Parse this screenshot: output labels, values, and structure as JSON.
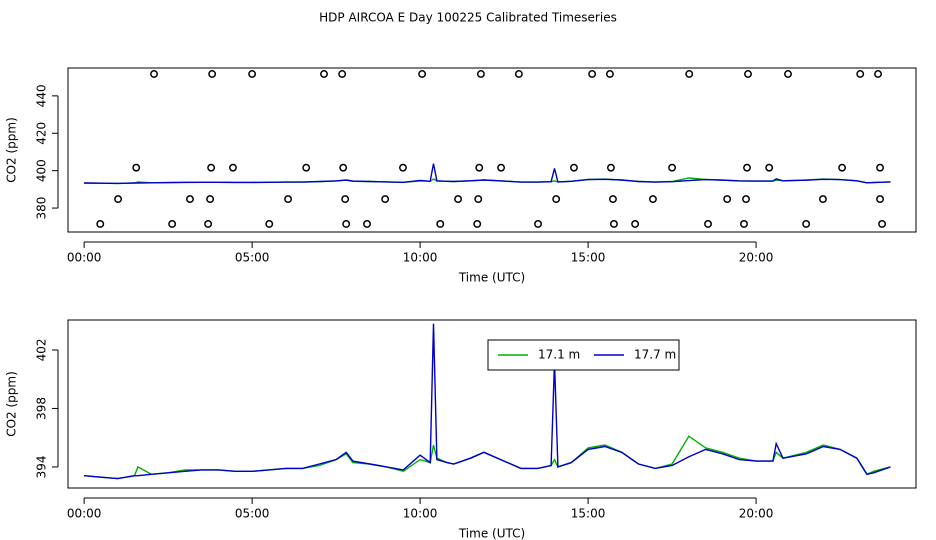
{
  "chart_data": [
    {
      "type": "line",
      "title": "HDP AIRCOA E  Day 100225  Calibrated Timeseries",
      "xlabel": "Time (UTC)",
      "ylabel": "CO2 (ppm)",
      "xlim": [
        -0.48,
        24.76
      ],
      "ylim": [
        367.2,
        454.9
      ],
      "xticks": [
        {
          "value": 0,
          "label": "00:00"
        },
        {
          "value": 5,
          "label": "05:00"
        },
        {
          "value": 10,
          "label": "10:00"
        },
        {
          "value": 15,
          "label": "15:00"
        },
        {
          "value": 20,
          "label": "20:00"
        }
      ],
      "yticks": [
        380,
        400,
        420,
        440
      ],
      "x": [
        0,
        0.5,
        1,
        1.5,
        1.6,
        2,
        2.5,
        3,
        3.5,
        4,
        4.5,
        5,
        5.5,
        6,
        6.5,
        7,
        7.5,
        7.8,
        8,
        8.5,
        9,
        9.5,
        10,
        10.3,
        10.4,
        10.5,
        10.8,
        11,
        11.5,
        11.9,
        12.5,
        13,
        13.5,
        13.9,
        14,
        14.1,
        14.5,
        15,
        15.5,
        16,
        16.5,
        17,
        17.5,
        18,
        18.5,
        19,
        19.5,
        20,
        20.5,
        20.6,
        20.8,
        21.5,
        22,
        22.5,
        23,
        23.3,
        23.5,
        24
      ],
      "series": [
        {
          "color": "#00b000",
          "values": [
            393.4,
            393.3,
            393.2,
            393.4,
            394.0,
            393.5,
            393.6,
            393.8,
            393.8,
            393.8,
            393.7,
            393.7,
            393.8,
            393.9,
            393.9,
            394.1,
            394.5,
            394.9,
            394.3,
            394.2,
            394.0,
            393.7,
            394.5,
            394.3,
            395.5,
            394.6,
            394.3,
            394.2,
            394.6,
            395.0,
            394.4,
            393.9,
            393.9,
            394.1,
            394.5,
            394.0,
            394.3,
            395.3,
            395.5,
            395.0,
            394.2,
            393.9,
            394.2,
            396.1,
            395.3,
            395.0,
            394.6,
            394.4,
            394.4,
            395.0,
            394.6,
            395.0,
            395.5,
            395.2,
            394.6,
            393.5,
            393.7,
            394.0
          ]
        },
        {
          "color": "#0000cc",
          "values": [
            393.4,
            393.3,
            393.2,
            393.4,
            393.4,
            393.5,
            393.6,
            393.7,
            393.8,
            393.8,
            393.7,
            393.7,
            393.8,
            393.9,
            393.9,
            394.2,
            394.5,
            395.0,
            394.4,
            394.2,
            394.0,
            393.8,
            394.8,
            394.3,
            403.8,
            394.5,
            394.3,
            394.2,
            394.6,
            395.0,
            394.4,
            393.9,
            393.9,
            394.1,
            401.2,
            394.0,
            394.3,
            395.2,
            395.4,
            395.0,
            394.2,
            393.9,
            394.1,
            394.7,
            395.2,
            394.9,
            394.5,
            394.4,
            394.4,
            395.6,
            394.6,
            394.9,
            395.4,
            395.2,
            394.6,
            393.5,
            393.6,
            394.0
          ]
        }
      ],
      "points": {
        "x": [
          2.08,
          3.81,
          5.0,
          7.14,
          7.68,
          10.06,
          11.81,
          12.94,
          15.12,
          15.65,
          18.01,
          19.76,
          20.95,
          23.1,
          23.63,
          1.55,
          3.78,
          4.43,
          6.61,
          7.71,
          9.49,
          11.76,
          12.41,
          14.58,
          15.68,
          17.5,
          19.73,
          20.39,
          22.56,
          23.69,
          1.01,
          3.15,
          3.75,
          6.07,
          7.77,
          8.96,
          11.13,
          11.73,
          14.05,
          15.74,
          16.93,
          19.14,
          19.7,
          21.99,
          23.69,
          0.48,
          2.62,
          3.69,
          5.51,
          7.8,
          8.42,
          10.6,
          11.7,
          13.51,
          15.77,
          16.4,
          18.57,
          19.64,
          21.49,
          23.75
        ],
        "y": [
          451.7,
          451.7,
          451.7,
          451.7,
          451.7,
          451.7,
          451.7,
          451.7,
          451.7,
          451.7,
          451.7,
          451.7,
          451.7,
          451.7,
          451.7,
          401.6,
          401.6,
          401.6,
          401.6,
          401.6,
          401.6,
          401.6,
          401.6,
          401.6,
          401.6,
          401.6,
          401.6,
          401.6,
          401.6,
          401.6,
          384.8,
          384.8,
          384.8,
          384.8,
          384.8,
          384.8,
          384.8,
          384.8,
          384.8,
          384.8,
          384.8,
          384.8,
          384.8,
          384.8,
          384.8,
          371.5,
          371.5,
          371.5,
          371.5,
          371.5,
          371.5,
          371.5,
          371.5,
          371.5,
          371.5,
          371.5,
          371.5,
          371.5,
          371.5,
          371.5
        ]
      }
    },
    {
      "type": "line",
      "xlabel": "Time (UTC)",
      "ylabel": "CO2 (ppm)",
      "xlim": [
        -0.48,
        24.76
      ],
      "ylim": [
        392.56,
        404.05
      ],
      "xticks": [
        {
          "value": 0,
          "label": "00:00"
        },
        {
          "value": 5,
          "label": "05:00"
        },
        {
          "value": 10,
          "label": "10:00"
        },
        {
          "value": 15,
          "label": "15:00"
        },
        {
          "value": 20,
          "label": "20:00"
        }
      ],
      "yticks": [
        394,
        398,
        402
      ],
      "legend": "top",
      "x": [
        0,
        0.5,
        1,
        1.5,
        1.6,
        2,
        2.5,
        3,
        3.5,
        4,
        4.5,
        5,
        5.5,
        6,
        6.5,
        7,
        7.5,
        7.8,
        8,
        8.5,
        9,
        9.5,
        10,
        10.3,
        10.4,
        10.5,
        10.8,
        11,
        11.5,
        11.9,
        12.5,
        13,
        13.5,
        13.9,
        14,
        14.1,
        14.5,
        15,
        15.5,
        16,
        16.5,
        17,
        17.5,
        18,
        18.5,
        19,
        19.5,
        20,
        20.5,
        20.6,
        20.8,
        21.5,
        22,
        22.5,
        23,
        23.3,
        23.5,
        24
      ],
      "series": [
        {
          "name": "17.1 m",
          "color": "#00b000",
          "values": [
            393.4,
            393.3,
            393.2,
            393.4,
            394.0,
            393.5,
            393.6,
            393.8,
            393.8,
            393.8,
            393.7,
            393.7,
            393.8,
            393.9,
            393.9,
            394.1,
            394.5,
            394.9,
            394.3,
            394.2,
            394.0,
            393.7,
            394.5,
            394.3,
            395.5,
            394.6,
            394.3,
            394.2,
            394.6,
            395.0,
            394.4,
            393.9,
            393.9,
            394.1,
            394.5,
            394.0,
            394.3,
            395.3,
            395.5,
            395.0,
            394.2,
            393.9,
            394.2,
            396.1,
            395.3,
            395.0,
            394.6,
            394.4,
            394.4,
            395.0,
            394.6,
            395.0,
            395.5,
            395.2,
            394.6,
            393.5,
            393.7,
            394.0
          ]
        },
        {
          "name": "17.7 m",
          "color": "#0000cc",
          "values": [
            393.4,
            393.3,
            393.2,
            393.4,
            393.4,
            393.5,
            393.6,
            393.7,
            393.8,
            393.8,
            393.7,
            393.7,
            393.8,
            393.9,
            393.9,
            394.2,
            394.5,
            395.0,
            394.4,
            394.2,
            394.0,
            393.8,
            394.8,
            394.3,
            403.8,
            394.5,
            394.3,
            394.2,
            394.6,
            395.0,
            394.4,
            393.9,
            393.9,
            394.1,
            401.2,
            394.0,
            394.3,
            395.2,
            395.4,
            395.0,
            394.2,
            393.9,
            394.1,
            394.7,
            395.2,
            394.9,
            394.5,
            394.4,
            394.4,
            395.6,
            394.6,
            394.9,
            395.4,
            395.2,
            394.6,
            393.5,
            393.6,
            394.0
          ]
        }
      ]
    }
  ]
}
